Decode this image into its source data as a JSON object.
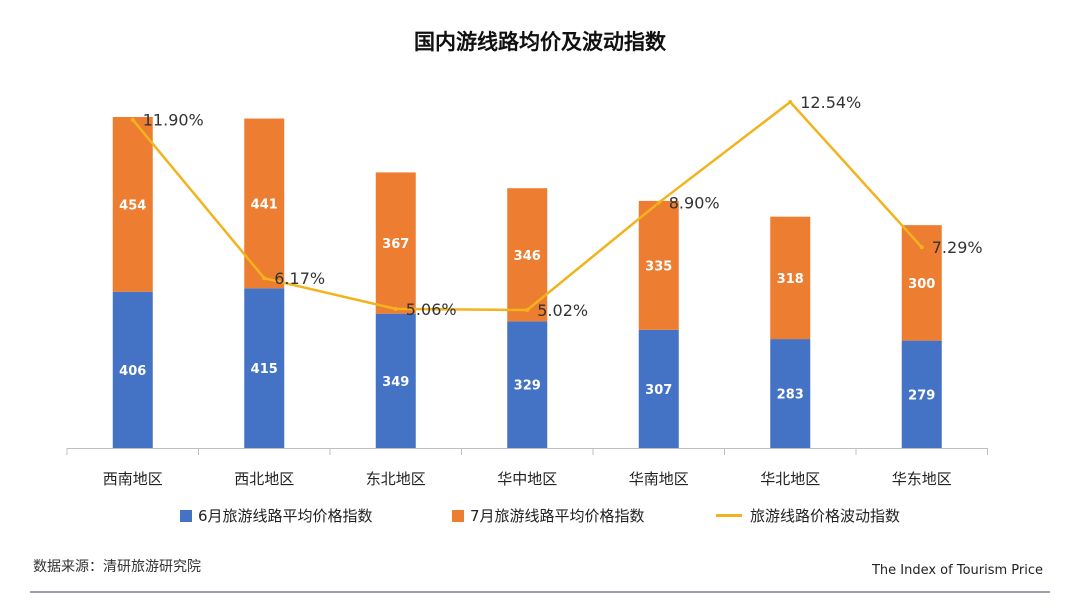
{
  "title": "国内游线路均价及波动指数",
  "legend": {
    "june_label": "6月旅游线路平均价格指数",
    "july_label": "7月旅游线路平均价格指数",
    "volatility_label": "旅游线路价格波动指数"
  },
  "source": "数据来源：清研旅游研究院",
  "english_tag": "The Index of Tourism Price",
  "colors": {
    "june": "#4472c4",
    "july": "#ed7d31",
    "volatility": "#f2b31e",
    "axis": "#bfbfbf"
  },
  "chart_data": {
    "type": "bar",
    "stacked": true,
    "title": "国内游线路均价及波动指数",
    "categories": [
      "西南地区",
      "西北地区",
      "东北地区",
      "华中地区",
      "华南地区",
      "华北地区",
      "华东地区"
    ],
    "series": [
      {
        "name": "6月旅游线路平均价格指数",
        "type": "bar",
        "values": [
          406,
          415,
          349,
          329,
          307,
          283,
          279
        ]
      },
      {
        "name": "7月旅游线路平均价格指数",
        "type": "bar",
        "values": [
          454,
          441,
          367,
          346,
          335,
          318,
          300
        ]
      },
      {
        "name": "旅游线路价格波动指数",
        "type": "line",
        "values": [
          11.9,
          6.17,
          5.06,
          5.02,
          8.9,
          12.54,
          7.29
        ],
        "labels": [
          "11.90%",
          "6.17%",
          "5.06%",
          "5.02%",
          "8.90%",
          "12.54%",
          "7.29%"
        ]
      }
    ],
    "legend_position": "bottom",
    "grid": false
  }
}
